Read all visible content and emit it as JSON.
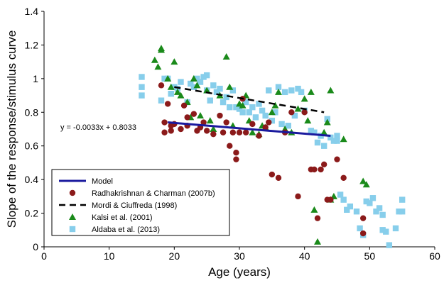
{
  "chart_data": {
    "type": "scatter",
    "xlabel": "Age (years)",
    "ylabel": "Slope of the response/stimulus curve",
    "xlim": [
      0,
      60
    ],
    "ylim": [
      0,
      1.4
    ],
    "x_ticks": [
      "0",
      "10",
      "20",
      "30",
      "40",
      "50",
      "60"
    ],
    "y_ticks": [
      "0",
      "0.2",
      "0.4",
      "0.6",
      "0.8",
      "1",
      "1.2",
      "1.4"
    ],
    "grid": false,
    "legend_position": "bottom-left",
    "annotation": "y = -0.0033x + 0.8033",
    "series": [
      {
        "name": "Model",
        "kind": "line",
        "style": "solid",
        "color": "#1a1a9e",
        "x": [
          19,
          44
        ],
        "y": [
          0.74,
          0.66
        ]
      },
      {
        "name": "Radhakrishnan & Charman (2007b)",
        "kind": "scatter",
        "marker": "circle",
        "color": "#8b1a1a",
        "x": [
          18,
          18.5,
          18.5,
          19,
          19.5,
          19.5,
          20,
          21,
          21.5,
          22,
          22,
          23,
          23.5,
          24,
          24.5,
          25,
          26,
          27,
          27.5,
          28,
          28.5,
          29,
          29.5,
          29.5,
          30,
          30.5,
          31,
          32,
          33,
          34,
          34.5,
          35,
          36,
          37,
          38,
          39,
          40,
          41,
          41.5,
          42,
          42.5,
          43,
          43.5,
          44,
          45,
          46,
          49,
          49
        ],
        "y": [
          0.96,
          0.68,
          0.74,
          0.85,
          0.69,
          0.72,
          0.73,
          0.7,
          0.84,
          0.72,
          0.77,
          0.79,
          0.69,
          0.71,
          0.74,
          0.69,
          0.67,
          0.78,
          0.68,
          0.74,
          0.6,
          0.68,
          0.56,
          0.52,
          0.68,
          0.88,
          0.68,
          0.73,
          0.66,
          0.71,
          0.74,
          0.43,
          0.41,
          0.68,
          0.8,
          0.3,
          0.8,
          0.46,
          0.46,
          0.17,
          0.46,
          0.49,
          0.28,
          0.28,
          0.52,
          0.41,
          0.08,
          0.17
        ]
      },
      {
        "name": "Mordi & Ciuffreda (1998)",
        "kind": "line",
        "style": "dashed",
        "color": "#000000",
        "x": [
          20,
          43
        ],
        "y": [
          0.95,
          0.8
        ]
      },
      {
        "name": "Kalsi et al. (2001)",
        "kind": "scatter",
        "marker": "triangle",
        "color": "#1a8a1a",
        "x": [
          17,
          17.5,
          18,
          18,
          19,
          19.5,
          20,
          20.5,
          21,
          22,
          22.5,
          23,
          23.5,
          24,
          25,
          25.5,
          26,
          27,
          28,
          28.5,
          29,
          30,
          30.5,
          31,
          31.5,
          32,
          33,
          33.5,
          34,
          35,
          35.5,
          36,
          37,
          38,
          39,
          40,
          40.5,
          41,
          41.5,
          42,
          43,
          43.5,
          44,
          44,
          44.5,
          46,
          49,
          49.5
        ],
        "y": [
          1.11,
          1.07,
          1.18,
          1.17,
          1.0,
          0.95,
          1.1,
          0.92,
          0.9,
          0.86,
          0.77,
          1.0,
          0.96,
          0.78,
          0.93,
          0.75,
          0.7,
          0.9,
          1.13,
          0.95,
          0.72,
          0.85,
          0.84,
          0.9,
          0.75,
          0.68,
          0.67,
          0.72,
          0.71,
          0.8,
          0.84,
          0.92,
          0.7,
          0.68,
          0.82,
          0.88,
          0.75,
          0.92,
          0.22,
          0.03,
          0.68,
          0.74,
          0.28,
          0.93,
          0.3,
          0.64,
          0.39,
          0.37
        ]
      },
      {
        "name": "Aldaba et al. (2013)",
        "kind": "scatter",
        "marker": "square",
        "color": "#87ceeb",
        "x": [
          15,
          15,
          15,
          18,
          18.5,
          19,
          19.5,
          20,
          20.5,
          21,
          22,
          22.5,
          23,
          23.5,
          24,
          24.5,
          25,
          25,
          25.5,
          26,
          26.5,
          27,
          27.5,
          28,
          28.5,
          29,
          29.5,
          30,
          30.5,
          31,
          31.5,
          32,
          32.5,
          33,
          33.5,
          34,
          34.5,
          35,
          35.5,
          36,
          36.5,
          37,
          37.5,
          38,
          38.5,
          39,
          39.5,
          40,
          41,
          41.5,
          42,
          42.5,
          43,
          43.5,
          44,
          44.5,
          45,
          45,
          45.5,
          46,
          46.5,
          47,
          48,
          48.5,
          49,
          49.5,
          50,
          50.5,
          51,
          51.5,
          52,
          52,
          52.5,
          53,
          54,
          54.5,
          55,
          55
        ],
        "y": [
          1.01,
          0.95,
          0.9,
          0.87,
          1.0,
          1.0,
          0.91,
          0.95,
          0.94,
          0.98,
          0.86,
          0.97,
          0.95,
          1.0,
          0.98,
          1.01,
          1.02,
          0.93,
          0.87,
          0.96,
          0.92,
          0.94,
          0.86,
          0.89,
          0.83,
          0.93,
          0.83,
          0.82,
          0.8,
          0.86,
          0.8,
          0.83,
          0.77,
          0.85,
          0.81,
          0.78,
          0.93,
          0.75,
          0.8,
          0.95,
          0.73,
          0.92,
          0.72,
          0.93,
          0.78,
          0.94,
          0.92,
          0.81,
          0.69,
          0.68,
          0.62,
          0.66,
          0.6,
          0.76,
          0.65,
          0.63,
          0.66,
          0.63,
          0.31,
          0.28,
          0.22,
          0.24,
          0.21,
          0.11,
          0.07,
          0.27,
          0.26,
          0.29,
          0.21,
          0.23,
          0.1,
          0.19,
          0.09,
          0.01,
          0.11,
          0.21,
          0.21,
          0.28
        ]
      }
    ]
  }
}
